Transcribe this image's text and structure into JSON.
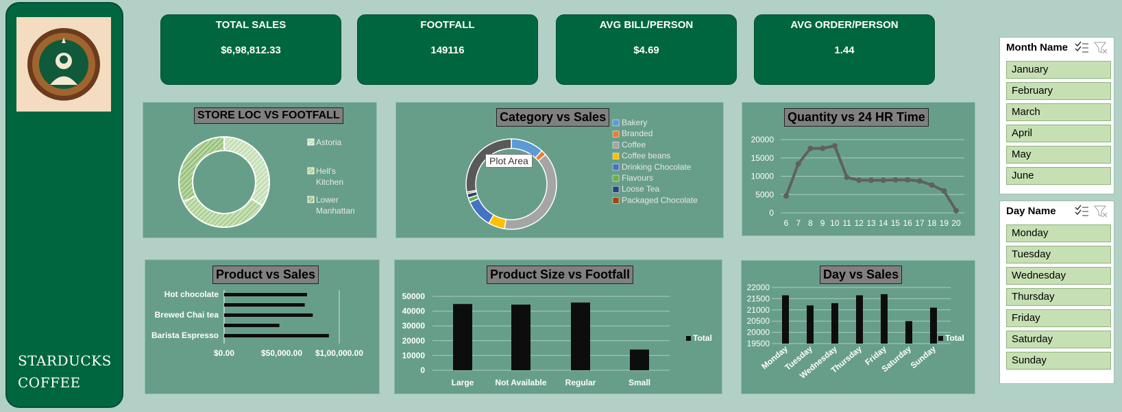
{
  "brand": {
    "line1": "STARDUCKS",
    "line2": "COFFEE"
  },
  "kpis": [
    {
      "title": "TOTAL SALES",
      "value": "$6,98,812.33"
    },
    {
      "title": "FOOTFALL",
      "value": "149116"
    },
    {
      "title": "AVG BILL/PERSON",
      "value": "$4.69"
    },
    {
      "title": "AVG ORDER/PERSON",
      "value": "1.44"
    }
  ],
  "panels": {
    "store": "STORE LOC VS FOOTFALL",
    "category": "Category vs Sales",
    "quantity": "Quantity vs  24 HR Time",
    "product": "Product vs Sales",
    "size": "Product Size vs Footfall",
    "day": "Day vs Sales"
  },
  "tooltip": "Plot Area",
  "colors": {
    "accent": "#00663f",
    "panel": "#679e8a",
    "background": "#b3d0c7",
    "slicer_item": "#c6e0b4"
  },
  "slicers": {
    "month": {
      "title": "Month Name",
      "items": [
        "January",
        "February",
        "March",
        "April",
        "May",
        "June"
      ]
    },
    "day": {
      "title": "Day Name",
      "items": [
        "Monday",
        "Tuesday",
        "Wednesday",
        "Thursday",
        "Friday",
        "Saturday",
        "Sunday"
      ]
    }
  },
  "chart_data": [
    {
      "id": "store",
      "type": "pie",
      "title": "STORE LOC VS FOOTFALL",
      "categories": [
        "Astoria",
        "Hell's Kitchen",
        "Lower Manhattan"
      ],
      "values": [
        33.8,
        34.0,
        32.2
      ],
      "legend": "right"
    },
    {
      "id": "category",
      "type": "pie",
      "title": "Category vs Sales",
      "categories": [
        "Bakery",
        "Branded",
        "Coffee",
        "Coffee beans",
        "Drinking Chocolate",
        "Flavours",
        "Loose Tea",
        "Packaged Chocolate"
      ],
      "values": [
        11.8,
        1.9,
        38.7,
        5.9,
        10.1,
        1.6,
        1.6,
        0.6
      ],
      "extra_value": 27.8,
      "legend": "right"
    },
    {
      "id": "quantity",
      "type": "line",
      "title": "Quantity vs  24 HR Time",
      "x": [
        6,
        7,
        8,
        9,
        10,
        11,
        12,
        13,
        14,
        15,
        16,
        17,
        18,
        19,
        20
      ],
      "values": [
        4600,
        13400,
        17600,
        17600,
        18300,
        9700,
        8900,
        8900,
        8900,
        9000,
        9000,
        8700,
        7600,
        6000,
        600
      ],
      "yticks": [
        "0",
        "5000",
        "10000",
        "15000",
        "20000"
      ],
      "ylim": [
        0,
        20000
      ]
    },
    {
      "id": "product",
      "type": "bar",
      "title": "Product vs Sales",
      "categories": [
        "Hot chocolate",
        "",
        "Brewed Chai tea",
        "",
        "Barista Espresso"
      ],
      "values": [
        72000,
        70000,
        77000,
        48000,
        91000
      ],
      "xticks": [
        "$0.00",
        "$50,000.00",
        "$1,00,000.00"
      ],
      "xlim": [
        0,
        100000
      ]
    },
    {
      "id": "size",
      "type": "bar",
      "title": "Product Size vs Footfall",
      "categories": [
        "Large",
        "Not Available",
        "Regular",
        "Small"
      ],
      "values": [
        44800,
        44400,
        45800,
        14000
      ],
      "yticks": [
        "0",
        "10000",
        "20000",
        "30000",
        "40000",
        "50000"
      ],
      "ylim": [
        0,
        50000
      ],
      "legend": "Total"
    },
    {
      "id": "day",
      "type": "bar",
      "title": "Day vs Sales",
      "categories": [
        "Monday",
        "Tuesday",
        "Wednesday",
        "Thursday",
        "Friday",
        "Saturday",
        "Sunday"
      ],
      "values": [
        21650,
        21200,
        21300,
        21650,
        21700,
        20500,
        21100
      ],
      "yticks": [
        "19500",
        "20000",
        "20500",
        "21000",
        "21500",
        "22000"
      ],
      "ylim": [
        19500,
        22000
      ],
      "legend": "Total"
    }
  ]
}
